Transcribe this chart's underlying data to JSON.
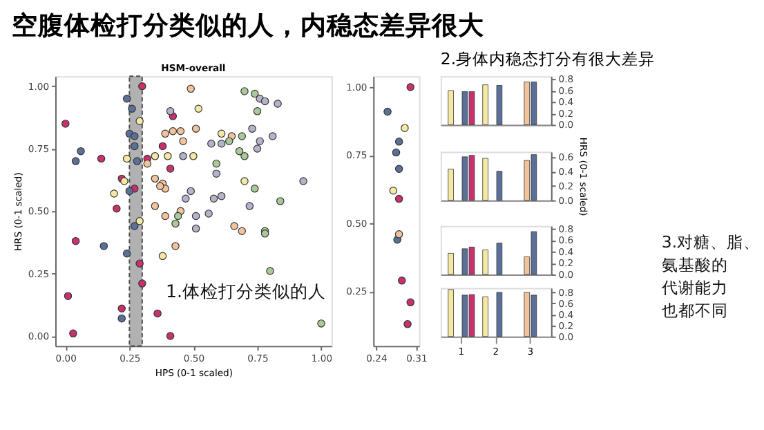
{
  "chart_data": [
    {
      "type": "scatter",
      "title": "空腹体检打分类似的人，内稳态差异很大",
      "subtitle": "HSM-overall",
      "xlabel": "HPS (0-1 scaled)",
      "ylabel": "HRS (0-1 scaled)",
      "xlim": [
        -0.04,
        1.04
      ],
      "ylim": [
        -0.04,
        1.04
      ],
      "xticks": [
        {
          "value": 0,
          "label": "0.00"
        },
        {
          "value": 0.25,
          "label": "0.25"
        },
        {
          "value": 0.5,
          "label": "0.50"
        },
        {
          "value": 0.75,
          "label": "0.75"
        },
        {
          "value": 1,
          "label": "1.00"
        }
      ],
      "yticks": [
        {
          "value": 0,
          "label": "0.00"
        },
        {
          "value": 0.25,
          "label": "0.25"
        },
        {
          "value": 0.5,
          "label": "0.50"
        },
        {
          "value": 0.75,
          "label": "0.75"
        },
        {
          "value": 1,
          "label": "1.00"
        }
      ],
      "marker": "circle",
      "legend": false,
      "grid": false,
      "bands": [
        {
          "axis": "x",
          "from": 0.25,
          "to": 0.3,
          "color": "#9e9e9e"
        }
      ],
      "annotations": [
        "1.体检打分类似的人"
      ],
      "series": [
        {
          "color": "#c8306e",
          "x": [
            0.0,
            0.14,
            0.04,
            0.2,
            0.22,
            0.22,
            0.01,
            0.03,
            0.3,
            0.42,
            0.32,
            0.41,
            0.27,
            0.29,
            0.3,
            0.36,
            0.41,
            0.38
          ],
          "values": [
            0.85,
            0.71,
            0.38,
            0.51,
            0.63,
            0.11,
            0.16,
            0.01,
            1.0,
            0.88,
            0.71,
            0.67,
            0.59,
            0.29,
            0.21,
            0.09,
            0.0,
            0.76
          ]
        },
        {
          "color": "#5a7099",
          "x": [
            0.04,
            0.06,
            0.15,
            0.24,
            0.22,
            0.24,
            0.26,
            0.25,
            0.27,
            0.27,
            0.28,
            0.25,
            0.27
          ],
          "values": [
            0.7,
            0.74,
            0.36,
            0.33,
            0.07,
            0.95,
            0.91,
            0.81,
            0.8,
            0.76,
            0.7,
            0.58,
            0.44
          ]
        },
        {
          "color": "#f4e8a3",
          "x": [
            0.19,
            0.24,
            0.23,
            0.29,
            0.29,
            0.35,
            0.4,
            0.5,
            0.38,
            0.7,
            0.61,
            0.52
          ],
          "values": [
            0.57,
            0.71,
            0.62,
            0.86,
            0.46,
            0.72,
            0.72,
            0.72,
            0.32,
            0.62,
            0.81,
            0.91
          ]
        },
        {
          "color": "#f0c39a",
          "x": [
            0.49,
            0.39,
            0.42,
            0.45,
            0.51,
            0.46,
            0.32,
            0.35,
            0.38,
            0.39,
            0.37,
            0.35,
            0.39,
            0.45,
            0.43,
            0.66,
            0.69,
            0.65
          ],
          "values": [
            0.99,
            0.81,
            0.82,
            0.82,
            0.83,
            0.78,
            0.69,
            0.63,
            0.61,
            0.59,
            0.6,
            0.52,
            0.48,
            0.5,
            0.36,
            0.44,
            0.42,
            0.8
          ]
        },
        {
          "color": "#a9c99a",
          "x": [
            0.43,
            0.44,
            0.7,
            0.74,
            0.69,
            0.64,
            0.68,
            0.7,
            0.74,
            0.59,
            0.78,
            0.78,
            0.8,
            0.84,
            1.0,
            0.75
          ],
          "values": [
            0.45,
            0.48,
            0.98,
            0.97,
            0.8,
            0.78,
            0.74,
            0.72,
            0.59,
            0.69,
            0.42,
            0.41,
            0.26,
            0.54,
            0.05,
            0.9
          ]
        },
        {
          "color": "#b3b3cc",
          "x": [
            0.41,
            0.46,
            0.47,
            0.49,
            0.51,
            0.51,
            0.56,
            0.58,
            0.61,
            0.59,
            0.57,
            0.61,
            0.73,
            0.76,
            0.75,
            0.72,
            0.76,
            0.78,
            0.83,
            0.81,
            0.93
          ],
          "values": [
            0.9,
            0.72,
            0.55,
            0.58,
            0.48,
            0.43,
            0.49,
            0.55,
            0.56,
            0.65,
            0.77,
            0.77,
            0.83,
            0.78,
            0.75,
            0.52,
            0.95,
            0.94,
            0.93,
            0.8,
            0.62
          ]
        }
      ]
    },
    {
      "type": "scatter",
      "xlim": [
        0.235,
        0.315
      ],
      "ylim": [
        0.05,
        1.04
      ],
      "xticks": [
        {
          "value": 0.24,
          "label": "0.24"
        },
        {
          "value": 0.31,
          "label": "0.31"
        }
      ],
      "yticks": [
        {
          "value": 0.25,
          "label": "0.25"
        },
        {
          "value": 0.5,
          "label": "0.50"
        },
        {
          "value": 0.75,
          "label": "0.75"
        },
        {
          "value": 1,
          "label": "1.00"
        }
      ],
      "marker": "circle",
      "legend": false,
      "grid": false,
      "series": [
        {
          "color": "#c8306e",
          "x": [
            0.3,
            0.28,
            0.285,
            0.3,
            0.295
          ],
          "values": [
            1.0,
            0.59,
            0.29,
            0.21,
            0.13
          ]
        },
        {
          "color": "#5a7099",
          "x": [
            0.26,
            0.28,
            0.275,
            0.28,
            0.277
          ],
          "values": [
            0.91,
            0.8,
            0.76,
            0.7,
            0.44
          ]
        },
        {
          "color": "#f4e8a3",
          "x": [
            0.29,
            0.27
          ],
          "values": [
            0.85,
            0.62
          ]
        },
        {
          "color": "#f0c39a",
          "x": [
            0.28
          ],
          "values": [
            0.46
          ]
        }
      ]
    },
    {
      "type": "bar",
      "categories": [
        "1",
        "2",
        "3"
      ],
      "ylim": [
        0,
        0.85
      ],
      "yticks": [
        {
          "value": 0,
          "label": "0.0"
        },
        0.2,
        0.4,
        0.6,
        0.8
      ],
      "tick_labels": "y",
      "legend": false,
      "grid": false,
      "annotations": [
        "2.身体内稳态打分有很大差异"
      ],
      "series": [
        {
          "color": "#f4e8a3",
          "values": [
            0.6,
            0.7,
            null
          ]
        },
        {
          "color": "#f0c39a",
          "values": [
            null,
            null,
            0.75
          ]
        },
        {
          "color": "#5a7099",
          "values": [
            0.58,
            0.69,
            0.75
          ]
        },
        {
          "color": "#c8306e",
          "values": [
            0.58,
            null,
            null
          ]
        }
      ]
    },
    {
      "type": "bar",
      "categories": [
        "1",
        "2",
        "3"
      ],
      "ylim": [
        0,
        0.67
      ],
      "yticks": [
        {
          "value": 0,
          "label": "0.0"
        },
        0.2,
        0.4,
        0.6
      ],
      "tick_labels": "y",
      "legend": false,
      "grid": false,
      "ylabel": "HRS (0-1 scaled)",
      "series": [
        {
          "color": "#f4e8a3",
          "values": [
            0.43,
            0.58,
            null
          ]
        },
        {
          "color": "#f0c39a",
          "values": [
            null,
            null,
            0.55
          ]
        },
        {
          "color": "#5a7099",
          "values": [
            0.6,
            0.4,
            0.63
          ]
        },
        {
          "color": "#c8306e",
          "values": [
            0.62,
            null,
            null
          ]
        }
      ]
    },
    {
      "type": "bar",
      "categories": [
        "1",
        "2",
        "3"
      ],
      "ylim": [
        0,
        0.85
      ],
      "yticks": [
        {
          "value": 0,
          "label": "0.0"
        },
        0.2,
        0.4,
        0.6,
        0.8
      ],
      "tick_labels": "y",
      "legend": false,
      "grid": false,
      "series": [
        {
          "color": "#f4e8a3",
          "values": [
            0.37,
            0.43,
            null
          ]
        },
        {
          "color": "#f0c39a",
          "values": [
            null,
            null,
            0.31
          ]
        },
        {
          "color": "#5a7099",
          "values": [
            0.45,
            0.55,
            0.75
          ]
        },
        {
          "color": "#c8306e",
          "values": [
            0.48,
            null,
            null
          ]
        }
      ]
    },
    {
      "type": "bar",
      "categories": [
        "1",
        "2",
        "3"
      ],
      "ylim": [
        0,
        0.88
      ],
      "yticks": [
        {
          "value": 0,
          "label": "0.0"
        },
        0.2,
        0.4,
        0.6,
        0.8
      ],
      "legend": false,
      "grid": false,
      "annotations": [
        "3.对糖、脂、氨基酸的代谢能力也都不同"
      ],
      "series": [
        {
          "color": "#f4e8a3",
          "values": [
            0.85,
            0.72,
            null
          ]
        },
        {
          "color": "#f0c39a",
          "values": [
            null,
            null,
            0.8
          ]
        },
        {
          "color": "#5a7099",
          "values": [
            0.75,
            0.8,
            0.75
          ]
        },
        {
          "color": "#c8306e",
          "values": [
            0.76,
            null,
            null
          ]
        }
      ]
    }
  ]
}
